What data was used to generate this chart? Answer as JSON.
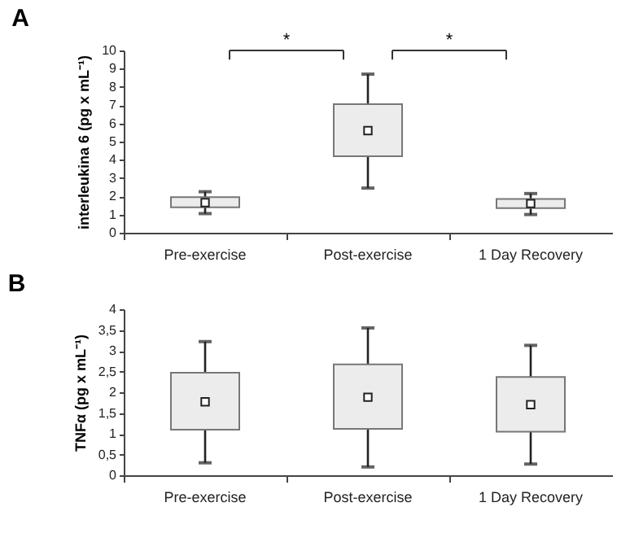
{
  "chart_data": [
    {
      "type": "box",
      "title": "A",
      "ylabel": "interleukina 6  (pg x mL⁻¹)",
      "categories": [
        "Pre-exercise",
        "Post-exercise",
        "1 Day Recovery"
      ],
      "boxes": [
        {
          "low": 1.05,
          "q1": 1.4,
          "median": 1.65,
          "q3": 1.95,
          "high": 2.25
        },
        {
          "low": 2.45,
          "q1": 4.2,
          "median": 5.6,
          "q3": 7.05,
          "high": 8.7
        },
        {
          "low": 1.0,
          "q1": 1.35,
          "median": 1.6,
          "q3": 1.85,
          "high": 2.15
        }
      ],
      "marker": "square",
      "ylim": [
        0,
        10
      ],
      "yticks": [
        0,
        1,
        2,
        3,
        4,
        5,
        6,
        7,
        8,
        9,
        10
      ],
      "annotations": [
        "*",
        "*"
      ]
    },
    {
      "type": "box",
      "title": "B",
      "ylabel": "TNFα (pg x mL⁻¹)",
      "categories": [
        "Pre-exercise",
        "Post-exercise",
        "1 Day Recovery"
      ],
      "boxes": [
        {
          "low": 0.3,
          "q1": 1.1,
          "median": 1.77,
          "q3": 2.47,
          "high": 3.22
        },
        {
          "low": 0.2,
          "q1": 1.12,
          "median": 1.88,
          "q3": 2.67,
          "high": 3.55
        },
        {
          "low": 0.27,
          "q1": 1.05,
          "median": 1.7,
          "q3": 2.37,
          "high": 3.13
        }
      ],
      "marker": "square",
      "ylim": [
        0,
        4
      ],
      "yticks": [
        0,
        {
          "value": 0.5,
          "label": "0,5"
        },
        1,
        {
          "value": 1.5,
          "label": "1,5"
        },
        2,
        {
          "value": 2.5,
          "label": "2,5"
        },
        3,
        {
          "value": 3.5,
          "label": "3,5"
        },
        4
      ]
    }
  ]
}
